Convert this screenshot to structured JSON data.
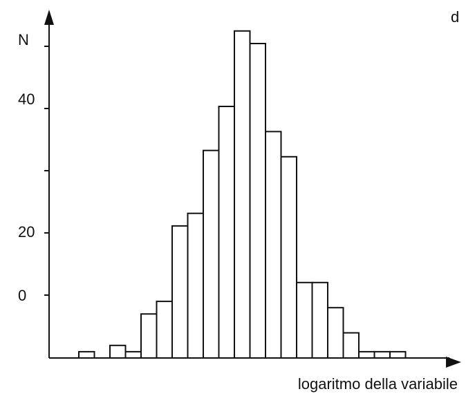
{
  "chart_data": {
    "type": "bar",
    "title": "",
    "panel_label": "d",
    "ylabel": "N",
    "xlabel": "logaritmo della variabile",
    "y_tick_labels": [
      "0",
      "20",
      "40"
    ],
    "values": [
      1,
      0,
      2,
      1,
      7,
      9,
      21,
      23,
      33,
      40,
      52,
      50,
      36,
      32,
      12,
      12,
      8,
      4,
      1,
      1,
      1
    ],
    "categories": [
      "",
      "",
      "",
      "",
      "",
      "",
      "",
      "",
      "",
      "",
      "",
      "",
      "",
      "",
      "",
      "",
      "",
      "",
      "",
      "",
      ""
    ],
    "ylim": [
      0,
      55
    ],
    "grid": false,
    "legend": "none"
  }
}
